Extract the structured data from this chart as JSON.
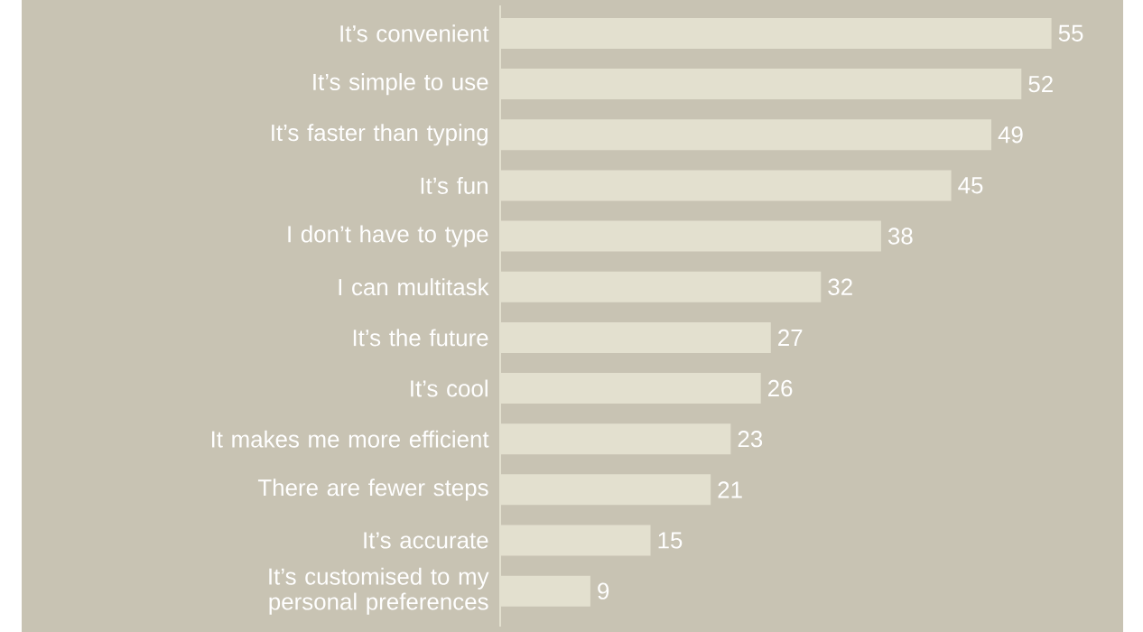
{
  "chart_data": {
    "type": "bar",
    "orientation": "horizontal",
    "relative": false,
    "data_labels": true,
    "categories": [
      "It’s convenient",
      "It’s simple to use",
      "It’s faster than typing",
      "It’s fun",
      "I don’t have to type",
      "I can multitask",
      "It’s the future",
      "It’s cool",
      "It makes me more efficient",
      "There are fewer steps",
      "It’s accurate",
      "It’s customised to my personal preferences"
    ],
    "values": [
      55,
      52,
      49,
      45,
      38,
      32,
      27,
      26,
      23,
      21,
      15,
      9
    ],
    "color": "#e3e0cf"
  }
}
